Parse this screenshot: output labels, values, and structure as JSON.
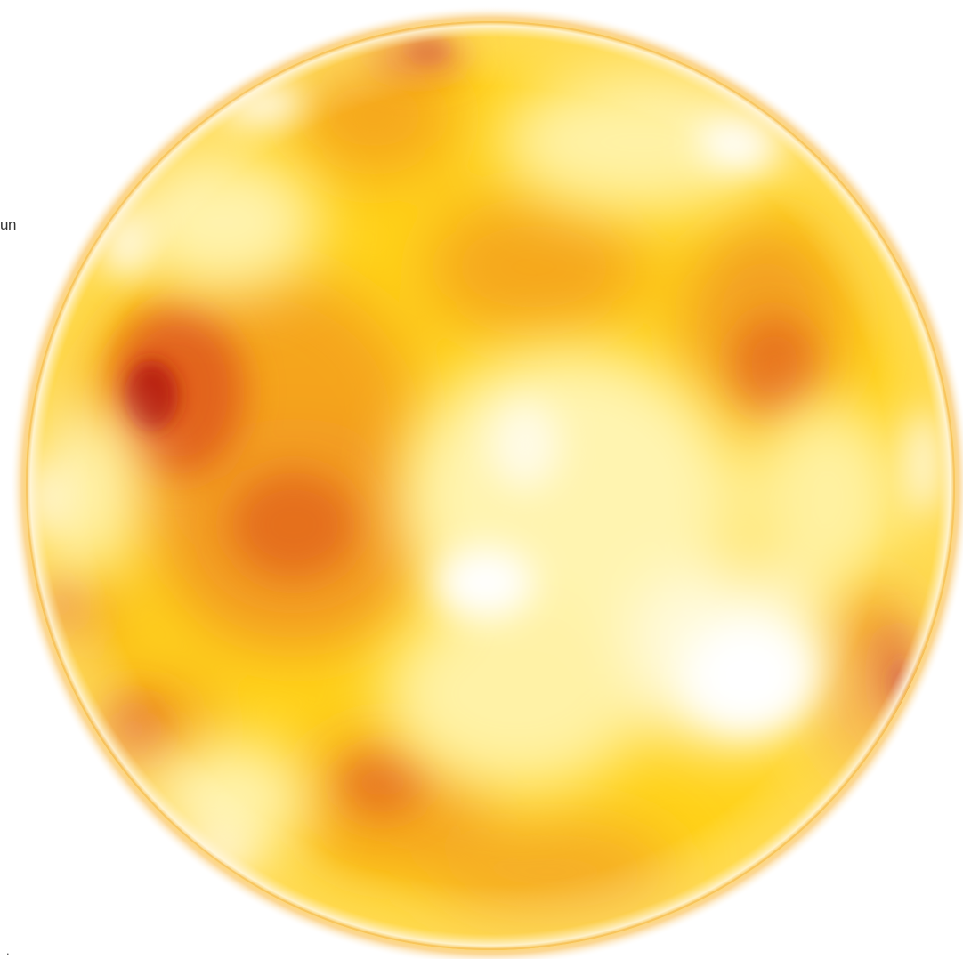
{
  "image": {
    "subject": "sun-disk",
    "palette": {
      "background": "#ffffff",
      "limb_glow": "#fbd38a",
      "bright_region": "#fffbe0",
      "base_yellow": "#ffd21a",
      "warm_orange": "#f5a51f",
      "deep_orange": "#e2641c",
      "darkest_red": "#b81a10"
    }
  },
  "labels": {
    "edge_text": "un",
    "bottom_mark": "."
  }
}
